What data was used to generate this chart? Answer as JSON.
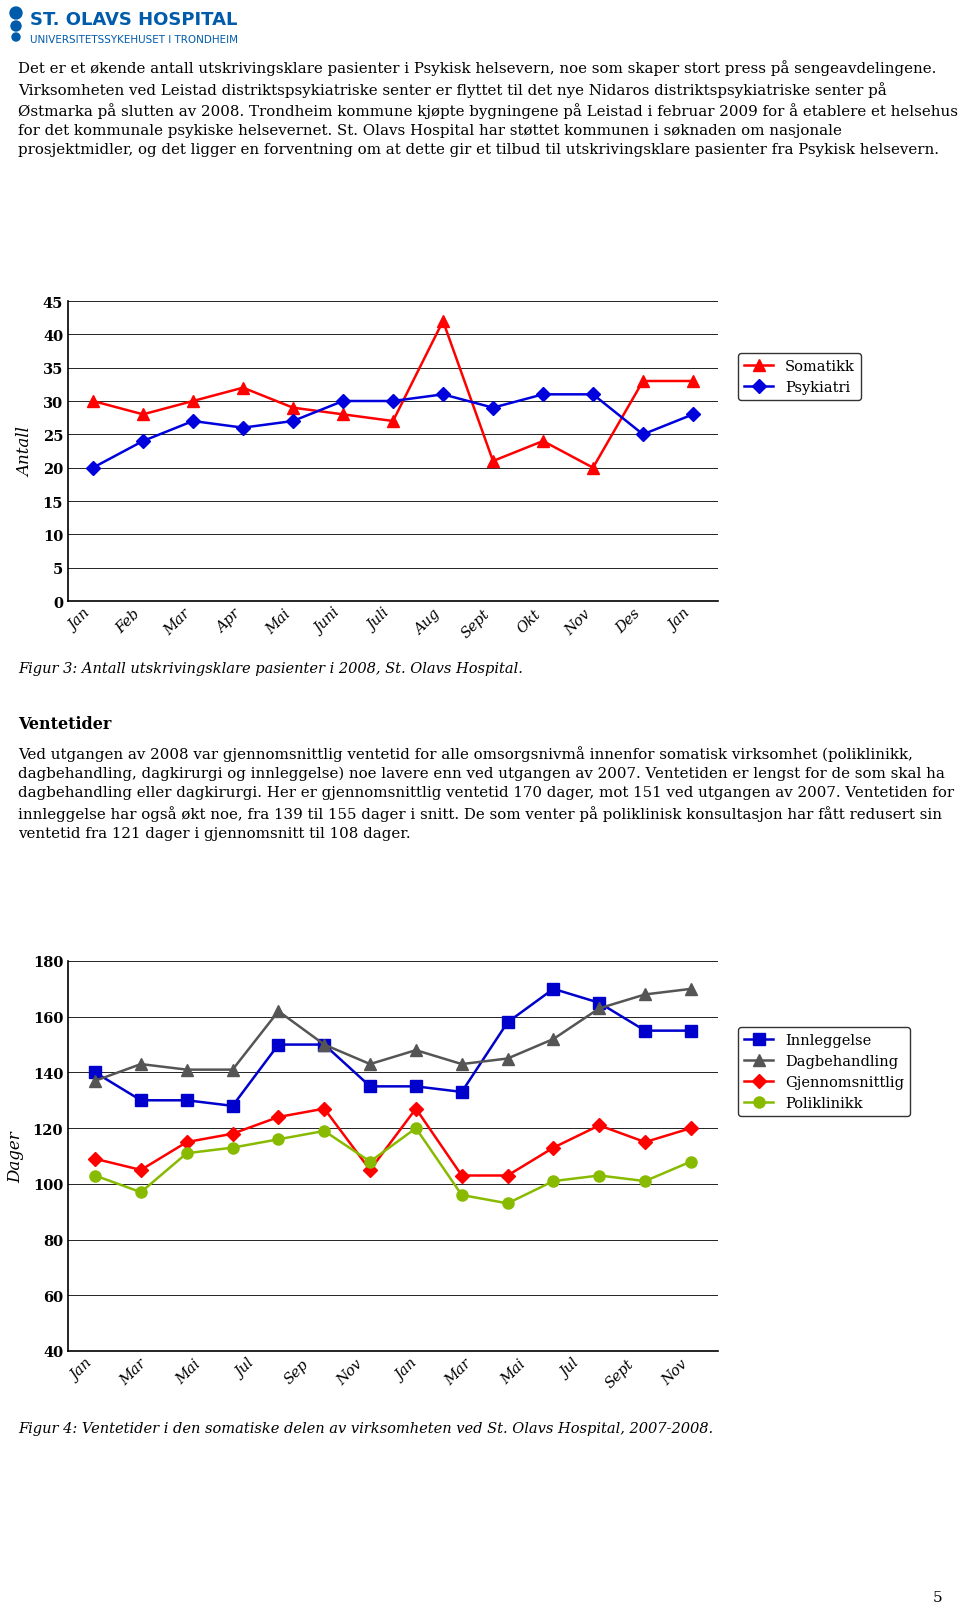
{
  "page_bg": "#ffffff",
  "logo_text1": "ST. OLAVS HOSPITAL",
  "logo_text2": "UNIVERSITETSSYKEHUSET I TRONDHEIM",
  "body_text1": "Det er et økende antall utskrivingsklare pasienter i Psykisk helsevern, noe som skaper stort press på sengeavdelingene. Virksomheten ved Leistad distriktspsykiatriske senter er flyttet til det nye Nidaros distriktspsykiatriske senter på Østmarka på slutten av 2008. Trondheim kommune kjøpte bygningene på Leistad i februar 2009 for å etablere et helsehus for det kommunale psykiske helsevernet. St. Olavs Hospital har støttet kommunen i søknaden om nasjonale prosjektmidler, og det ligger en forventning om at dette gir et tilbud til utskrivingsklare pasienter fra Psykisk helsevern.",
  "chart1_xlabels": [
    "Jan",
    "Feb",
    "Mar",
    "Apr",
    "Mai",
    "Juni",
    "Juli",
    "Aug",
    "Sept",
    "Okt",
    "Nov",
    "Des",
    "Jan"
  ],
  "chart1_somatikk": [
    30,
    28,
    30,
    32,
    29,
    28,
    27,
    42,
    21,
    24,
    20,
    33,
    33
  ],
  "chart1_psykiatri": [
    20,
    24,
    27,
    26,
    27,
    30,
    30,
    31,
    29,
    31,
    31,
    25,
    28
  ],
  "chart1_ylabel": "Antall",
  "chart1_ylim": [
    0,
    45
  ],
  "chart1_yticks": [
    0,
    5,
    10,
    15,
    20,
    25,
    30,
    35,
    40,
    45
  ],
  "chart1_caption": "Figur 3: Antall utskrivingsklare pasienter i 2008, St. Olavs Hospital.",
  "chart1_somatikk_color": "#ff0000",
  "chart1_psykiatri_color": "#0000dd",
  "chart1_legend_somatikk": "Somatikk",
  "chart1_legend_psykiatri": "Psykiatri",
  "ventetider_heading": "Ventetider",
  "ventetider_body": "Ved utgangen av 2008 var gjennomsnittlig ventetid for alle omsorgsnivmå innenfor somatisk virksomhet (poliklinikk, dagbehandling, dagkirurgi og innleggelse) noe lavere enn ved utgangen av 2007. Ventetiden er lengst for de som skal ha dagbehandling eller dagkirurgi. Her er gjennomsnittlig ventetid 170 dager, mot 151 ved utgangen av 2007. Ventetiden for innleggelse har også økt noe, fra 139 til 155 dager i snitt. De som venter på poliklinisk konsultasjon har fått redusert sin ventetid fra 121 dager i gjennomsnitt til 108 dager.",
  "chart2_xlabels": [
    "Jan",
    "Mar",
    "Mai",
    "Jul",
    "Sep",
    "Nov",
    "Jan",
    "Mar",
    "Mai",
    "Jul",
    "Sept",
    "Nov"
  ],
  "chart2_innleggelse": [
    140,
    130,
    130,
    128,
    150,
    150,
    135,
    135,
    133,
    158,
    170,
    165,
    155,
    155
  ],
  "chart2_dagbehandling": [
    137,
    143,
    141,
    141,
    162,
    150,
    143,
    148,
    143,
    145,
    152,
    163,
    168,
    170
  ],
  "chart2_gjennomsnittlig": [
    109,
    105,
    115,
    118,
    124,
    127,
    105,
    127,
    103,
    103,
    113,
    121,
    115,
    120
  ],
  "chart2_poliklinikk": [
    103,
    97,
    111,
    113,
    116,
    119,
    108,
    120,
    96,
    93,
    101,
    103,
    101,
    108
  ],
  "chart2_ylabel": "Dager",
  "chart2_ylim": [
    40,
    180
  ],
  "chart2_yticks": [
    40,
    60,
    80,
    100,
    120,
    140,
    160,
    180
  ],
  "chart2_caption": "Figur 4: Ventetider i den somatiske delen av virksomheten ved St. Olavs Hospital, 2007-2008.",
  "innleggelse_color": "#0000cc",
  "dagbehandling_color": "#555555",
  "gjennomsnittlig_color": "#ff0000",
  "poliklinikk_color": "#88bb00",
  "legend_innleggelse": "Innleggelse",
  "legend_dagbehandling": "Dagbehandling",
  "legend_gjennomsnittlig": "Gjennomsnittlig",
  "legend_poliklinikk": "Poliklinikk",
  "page_number": "5"
}
